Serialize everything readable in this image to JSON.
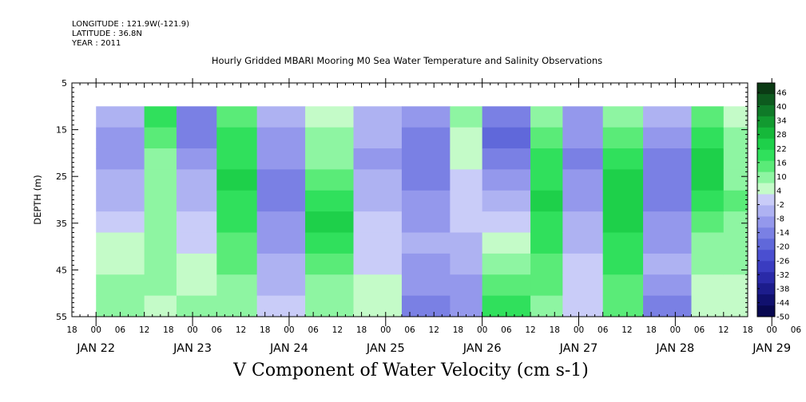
{
  "header": {
    "longitude": "LONGITUDE : 121.9W(-121.9)",
    "latitude": "LATITUDE : 36.8N",
    "year": "YEAR : 2011"
  },
  "chart_data": {
    "type": "heatmap",
    "title": "Hourly Gridded MBARI Mooring M0 Sea Water Temperature and Salinity Observations",
    "xlabel": "V Component of Water Velocity (cm s-1)",
    "ylabel": "DEPTH (m)",
    "ylim": [
      55,
      5
    ],
    "y_ticks": [
      "5",
      "15",
      "25",
      "35",
      "45",
      "55"
    ],
    "x_hour_ticks": [
      "18",
      "00",
      "06",
      "12",
      "18",
      "00",
      "06",
      "12",
      "18",
      "00",
      "06",
      "12",
      "18",
      "00",
      "06",
      "12",
      "18",
      "00",
      "06",
      "12",
      "18",
      "00",
      "06",
      "12",
      "18",
      "00",
      "06",
      "12",
      "18",
      "00",
      "06",
      "12",
      "18",
      "00",
      "06",
      "12",
      "18"
    ],
    "x_day_labels": [
      "JAN 22",
      "JAN 23",
      "JAN 24",
      "JAN 25",
      "JAN 26",
      "JAN 27",
      "JAN 28",
      "JAN 29"
    ],
    "x_day_hours": [
      0,
      24,
      48,
      72,
      96,
      120,
      144,
      168
    ],
    "xlim_hours": [
      -6,
      162
    ],
    "data_start_hour": 0,
    "data_top_depth": 10,
    "colorbar_levels": [
      "46",
      "40",
      "34",
      "28",
      "22",
      "16",
      "10",
      "4",
      "-2",
      "-8",
      "-14",
      "-20",
      "-26",
      "-32",
      "-38",
      "-44",
      "-50"
    ],
    "colorbar_colors": [
      "#0b3a14",
      "#0d5a1e",
      "#0f7a28",
      "#129a30",
      "#16b83a",
      "#1ed04a",
      "#30e05c",
      "#5aeb78",
      "#8ef5a2",
      "#c4fbc8",
      "#c9ccf8",
      "#aeb2f2",
      "#9498ec",
      "#7a80e4",
      "#6068da",
      "#4a4fd0",
      "#3a3cc0",
      "#2a2aa8",
      "#1c1c8c",
      "#10106e",
      "#080850"
    ],
    "columns": [
      {
        "hours": [
          0,
          12
        ],
        "values": [
          -8,
          -10,
          -12,
          -8,
          -6,
          -4,
          2,
          4,
          6,
          10
        ]
      },
      {
        "hours": [
          12,
          20
        ],
        "values": [
          16,
          14,
          10,
          8,
          6,
          8,
          10,
          8,
          6,
          4
        ]
      },
      {
        "hours": [
          20,
          30
        ],
        "values": [
          -16,
          -14,
          -10,
          -8,
          -6,
          -2,
          0,
          2,
          4,
          6
        ]
      },
      {
        "hours": [
          30,
          40
        ],
        "values": [
          14,
          16,
          18,
          20,
          18,
          16,
          14,
          12,
          10,
          8
        ]
      },
      {
        "hours": [
          40,
          52
        ],
        "values": [
          -8,
          -10,
          -12,
          -14,
          -16,
          -12,
          -10,
          -8,
          -6,
          -4
        ]
      },
      {
        "hours": [
          52,
          64
        ],
        "values": [
          4,
          8,
          10,
          14,
          18,
          20,
          16,
          12,
          8,
          6
        ]
      },
      {
        "hours": [
          64,
          76
        ],
        "values": [
          -6,
          -8,
          -10,
          -8,
          -6,
          -4,
          -2,
          0,
          2,
          4
        ]
      },
      {
        "hours": [
          76,
          88
        ],
        "values": [
          -12,
          -14,
          -16,
          -14,
          -12,
          -10,
          -8,
          -10,
          -12,
          -14
        ]
      },
      {
        "hours": [
          88,
          96
        ],
        "values": [
          6,
          4,
          2,
          0,
          -2,
          -4,
          -6,
          -8,
          -10,
          -12
        ]
      },
      {
        "hours": [
          96,
          108
        ],
        "values": [
          -18,
          -20,
          -16,
          -12,
          -8,
          -4,
          2,
          8,
          14,
          18
        ]
      },
      {
        "hours": [
          108,
          116
        ],
        "values": [
          10,
          14,
          16,
          18,
          20,
          18,
          16,
          14,
          12,
          10
        ]
      },
      {
        "hours": [
          116,
          126
        ],
        "values": [
          -10,
          -12,
          -14,
          -12,
          -10,
          -8,
          -6,
          -4,
          -2,
          0
        ]
      },
      {
        "hours": [
          126,
          136
        ],
        "values": [
          8,
          12,
          16,
          20,
          22,
          20,
          18,
          16,
          14,
          12
        ]
      },
      {
        "hours": [
          136,
          148
        ],
        "values": [
          -6,
          -10,
          -14,
          -16,
          -14,
          -12,
          -10,
          -8,
          -12,
          -14
        ]
      },
      {
        "hours": [
          148,
          156
        ],
        "values": [
          14,
          16,
          20,
          22,
          18,
          14,
          10,
          6,
          4,
          2
        ]
      },
      {
        "hours": [
          156,
          162
        ],
        "values": [
          4,
          6,
          8,
          10,
          12,
          10,
          8,
          6,
          4,
          2
        ]
      }
    ]
  }
}
